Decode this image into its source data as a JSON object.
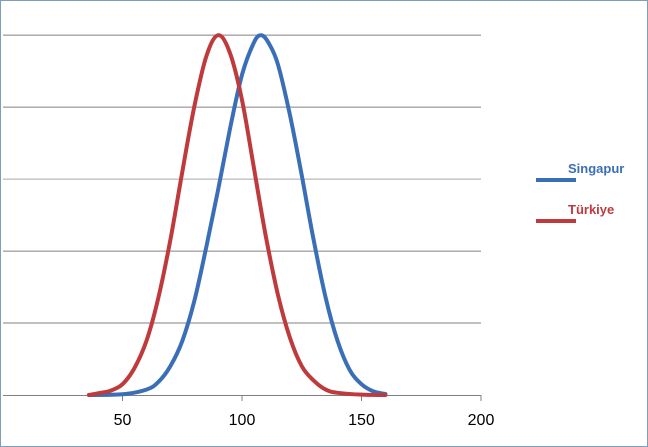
{
  "chart_data": {
    "type": "line",
    "title": "",
    "xlabel": "",
    "ylabel": "",
    "xlim": [
      0,
      200
    ],
    "xticks": [
      50,
      100,
      150,
      200
    ],
    "ylim": [
      0,
      1.07
    ],
    "ygrid": [
      0.2,
      0.4,
      0.6,
      0.8,
      1.0
    ],
    "grid": "horizontal",
    "legend_position": "right",
    "series": [
      {
        "name": "Singapur",
        "color": "#3a6fb8",
        "x": [
          36,
          50,
          60,
          65,
          70,
          75,
          80,
          85,
          90,
          95,
          100,
          105,
          108,
          111,
          115,
          120,
          125,
          130,
          135,
          140,
          145,
          150,
          155,
          160
        ],
        "y": [
          0.0,
          0.002,
          0.015,
          0.036,
          0.08,
          0.15,
          0.26,
          0.41,
          0.57,
          0.74,
          0.89,
          0.98,
          1.0,
          0.98,
          0.92,
          0.78,
          0.61,
          0.43,
          0.27,
          0.15,
          0.07,
          0.03,
          0.01,
          0.003
        ]
      },
      {
        "name": "Türkiye",
        "color": "#be3a3c",
        "x": [
          36,
          40,
          45,
          50,
          55,
          60,
          65,
          70,
          75,
          80,
          85,
          90,
          95,
          100,
          105,
          110,
          115,
          120,
          125,
          130,
          135,
          140,
          150,
          160
        ],
        "y": [
          0.0,
          0.005,
          0.012,
          0.03,
          0.075,
          0.15,
          0.27,
          0.43,
          0.62,
          0.8,
          0.94,
          1.0,
          0.95,
          0.82,
          0.63,
          0.44,
          0.28,
          0.16,
          0.08,
          0.04,
          0.015,
          0.006,
          0.001,
          0.0
        ]
      }
    ]
  }
}
